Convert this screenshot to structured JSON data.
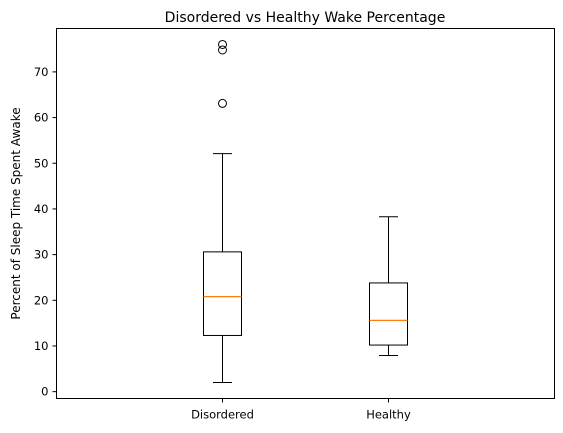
{
  "chart_data": {
    "type": "box",
    "title": "Disordered vs Healthy Wake Percentage",
    "xlabel": "",
    "ylabel": "Percent of Sleep Time Spent Awake",
    "ylim": [
      -1.5,
      79.5
    ],
    "yticks": [
      0,
      10,
      20,
      30,
      40,
      50,
      60,
      70
    ],
    "categories": [
      "Disordered",
      "Healthy"
    ],
    "boxes": [
      {
        "name": "Disordered",
        "whisker_low": 2.0,
        "q1": 12.3,
        "median": 20.8,
        "q3": 30.6,
        "whisker_high": 52.1,
        "outliers": [
          63.1,
          74.8,
          76.0
        ]
      },
      {
        "name": "Healthy",
        "whisker_low": 7.9,
        "q1": 10.2,
        "median": 15.6,
        "q3": 23.8,
        "whisker_high": 38.3,
        "outliers": []
      }
    ],
    "colors": {
      "box": "#000000",
      "median": "#ff7f0e"
    },
    "grid": false
  }
}
